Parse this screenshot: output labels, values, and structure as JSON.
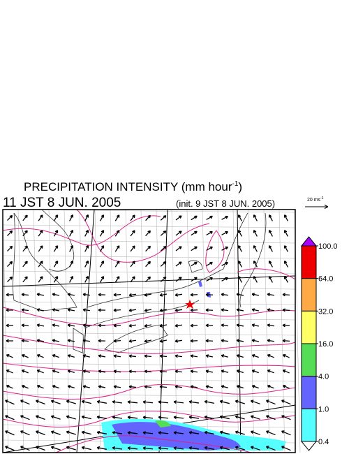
{
  "header": {
    "title": "PRECIPITATION INTENSITY (mm hour",
    "title_exponent": "-1",
    "title_end": ")",
    "valid_time": "11 JST 8 JUN. 2005",
    "init_time": "(init. 9 JST 8 JUN. 2005)",
    "vector_scale": "20 ms",
    "vector_scale_exponent": "-1"
  },
  "colorbar": {
    "levels": [
      {
        "value": 100,
        "label": "100.0"
      },
      {
        "value": 64,
        "label": "64.0"
      },
      {
        "value": 32,
        "label": "32.0"
      },
      {
        "value": 16,
        "label": "16.0"
      },
      {
        "value": 4,
        "label": "4.0"
      },
      {
        "value": 1,
        "label": "1.0"
      },
      {
        "value": 0.4,
        "label": "0.4"
      }
    ],
    "colors": [
      "#ee0000",
      "#ffaa44",
      "#ffff66",
      "#55dd55",
      "#6464ff",
      "#55ffff"
    ],
    "over_color": "#aa00ff",
    "under_color": "#ffffff"
  }
}
